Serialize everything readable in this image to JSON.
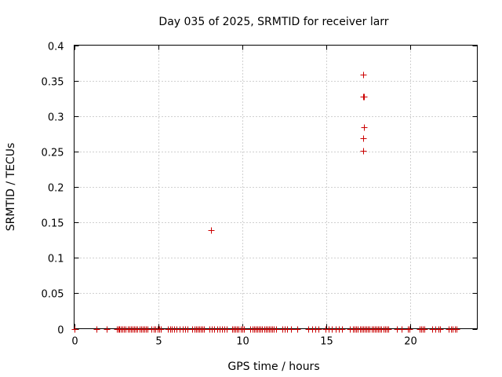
{
  "chart_data": {
    "type": "scatter",
    "title": "Day 035 of 2025, SRMTID for receiver larr",
    "xlabel": "GPS time / hours",
    "ylabel": "SRMTID / TECUs",
    "xlim": [
      0,
      24
    ],
    "ylim": [
      0,
      0.4
    ],
    "xticks": [
      0,
      5,
      10,
      15,
      20
    ],
    "xtick_labels": [
      "0",
      "5",
      "10",
      "15",
      "20"
    ],
    "yticks": [
      0,
      0.05,
      0.1,
      0.15,
      0.2,
      0.25,
      0.3,
      0.35,
      0.4
    ],
    "ytick_labels": [
      "0",
      "0.05",
      "0.1",
      "0.15",
      "0.2",
      "0.25",
      "0.3",
      "0.35",
      "0.4"
    ],
    "grid": true,
    "marker": "+",
    "color": "#cc0000",
    "series": [
      {
        "name": "SRMTID",
        "points": [
          [
            8.17,
            0.139
          ],
          [
            17.21,
            0.359
          ],
          [
            17.19,
            0.327
          ],
          [
            17.25,
            0.327
          ],
          [
            17.23,
            0.284
          ],
          [
            17.22,
            0.269
          ],
          [
            17.22,
            0.251
          ]
        ],
        "zero_value_times": [
          0.02,
          1.35,
          1.92,
          2.55,
          2.62,
          2.7,
          2.78,
          2.88,
          2.98,
          3.08,
          3.18,
          3.28,
          3.38,
          3.48,
          3.58,
          3.68,
          3.78,
          3.88,
          3.98,
          4.08,
          4.18,
          4.28,
          4.38,
          4.62,
          4.72,
          4.82,
          4.95,
          5.05,
          5.15,
          5.6,
          5.7,
          5.8,
          5.95,
          6.1,
          6.3,
          6.45,
          6.6,
          6.75,
          7.05,
          7.15,
          7.25,
          7.35,
          7.45,
          7.55,
          7.65,
          7.75,
          8.05,
          8.2,
          8.35,
          8.5,
          8.65,
          8.8,
          8.95,
          9.1,
          9.4,
          9.5,
          9.6,
          9.7,
          9.8,
          9.9,
          10.0,
          10.1,
          10.5,
          10.6,
          10.7,
          10.8,
          10.9,
          11.0,
          11.1,
          11.2,
          11.3,
          11.4,
          11.5,
          11.6,
          11.7,
          11.8,
          11.9,
          12.0,
          12.4,
          12.55,
          12.7,
          12.9,
          13.3,
          13.95,
          14.15,
          14.35,
          14.55,
          14.95,
          15.15,
          15.35,
          15.55,
          15.75,
          15.95,
          16.4,
          16.6,
          16.7,
          16.8,
          16.9,
          17.0,
          17.1,
          17.2,
          17.3,
          17.4,
          17.5,
          17.6,
          17.7,
          17.8,
          17.9,
          18.0,
          18.1,
          18.2,
          18.3,
          18.4,
          18.5,
          18.6,
          18.7,
          19.2,
          19.5,
          19.85,
          19.95,
          20.55,
          20.65,
          20.75,
          20.85,
          21.3,
          21.5,
          21.7,
          21.8,
          22.3,
          22.45,
          22.55,
          22.65,
          22.75
        ]
      }
    ]
  }
}
